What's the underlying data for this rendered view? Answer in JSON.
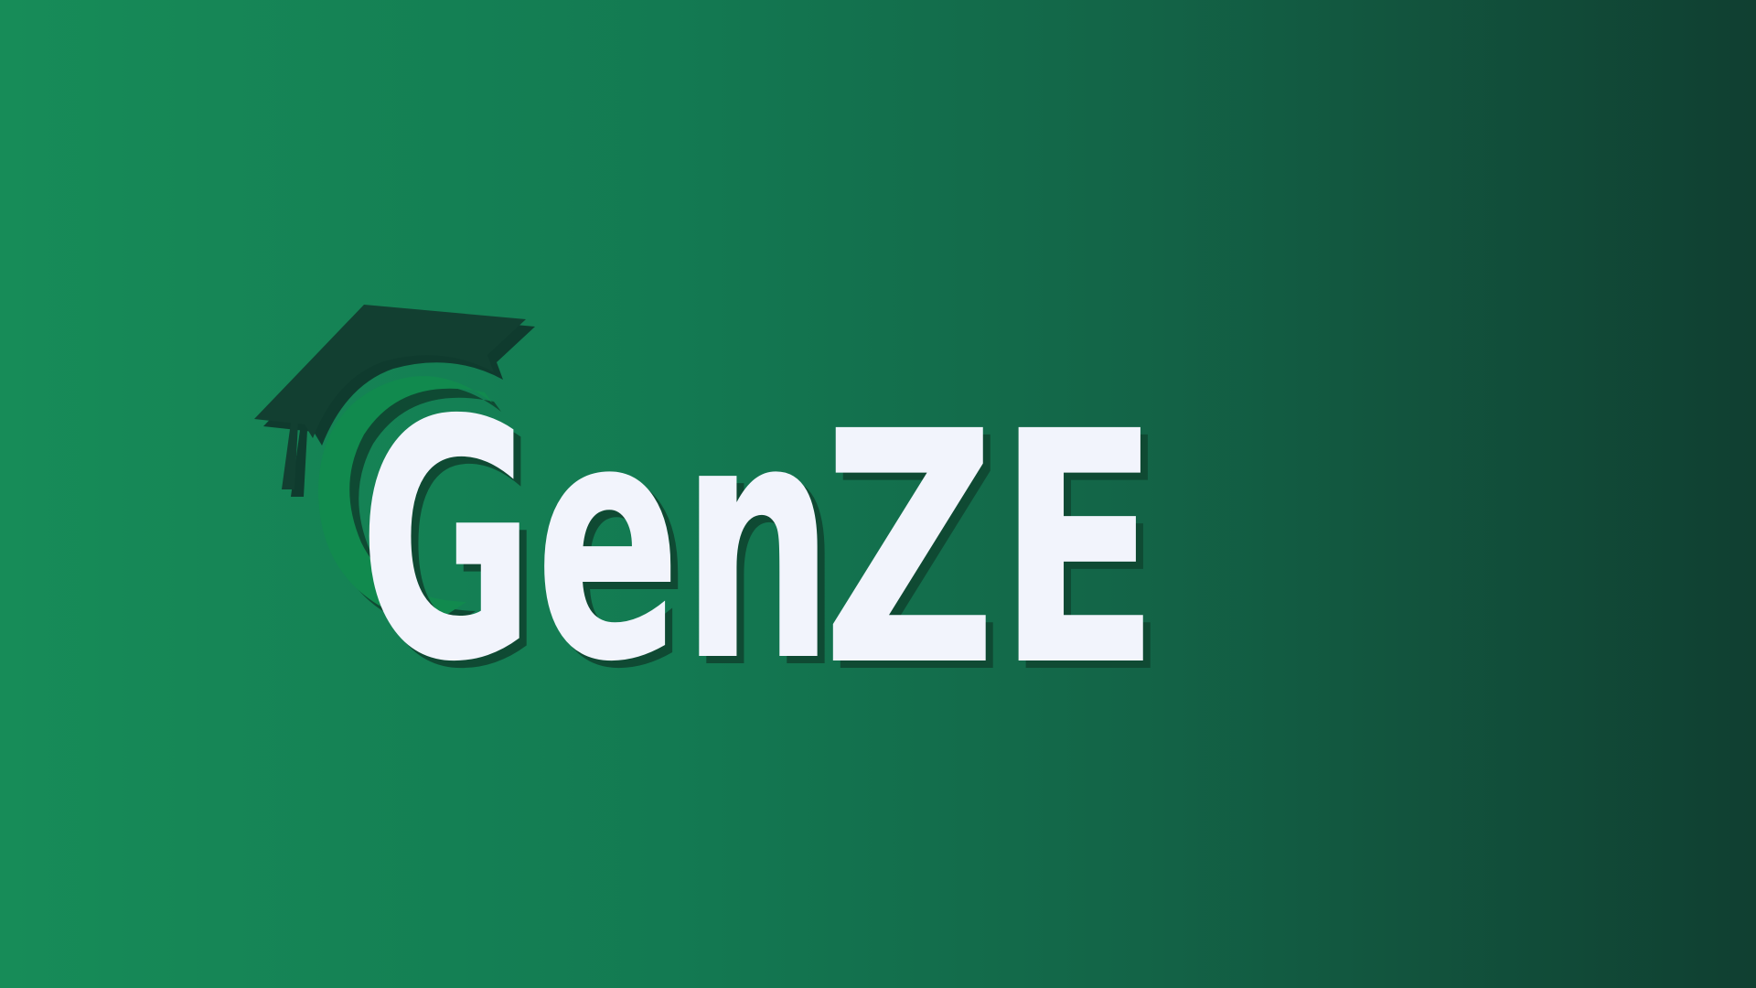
{
  "logo": {
    "wordmark_part1": "Gen",
    "wordmark_part2": "ZE",
    "icon": "graduation-cap-icon",
    "colors": {
      "background_start": "#178c58",
      "background_end": "#103f31",
      "cap": "#123f31",
      "swoosh": "#118a4e",
      "shadow": "#0f4a33",
      "text": "#f2f4fc"
    }
  }
}
